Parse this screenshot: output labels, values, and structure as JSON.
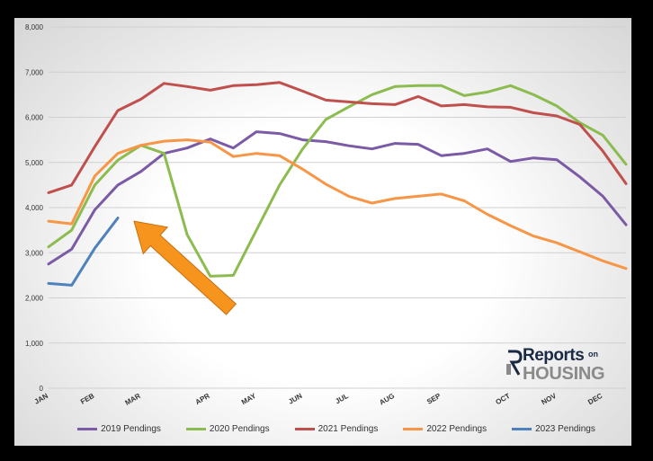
{
  "chart_data": {
    "type": "line",
    "title": "",
    "xlabel": "",
    "ylabel": "",
    "ylim": [
      0,
      8000
    ],
    "yticks": [
      0,
      1000,
      2000,
      3000,
      4000,
      5000,
      6000,
      7000,
      8000
    ],
    "ytick_labels": [
      "0",
      "1,000",
      "2,000",
      "3,000",
      "4,000",
      "5,000",
      "6,000",
      "7,000",
      "8,000"
    ],
    "x_month_labels": [
      "JAN",
      "FEB",
      "MAR",
      "APR",
      "MAY",
      "JUN",
      "JUL",
      "AUG",
      "SEP",
      "OCT",
      "NOV",
      "DEC"
    ],
    "x_month_positions": [
      0,
      2,
      4,
      7,
      9,
      11,
      13,
      15,
      17,
      20,
      22,
      24
    ],
    "grid": "horizontal",
    "legend_position": "bottom",
    "series": [
      {
        "name": "2019 Pendings",
        "color": "#7b5aa6",
        "values": [
          2750,
          3080,
          3950,
          4500,
          4800,
          5200,
          5320,
          5520,
          5320,
          5680,
          5640,
          5500,
          5460,
          5370,
          5300,
          5420,
          5400,
          5150,
          5200,
          5300,
          5020,
          5100,
          5060,
          4680,
          4250,
          3620
        ]
      },
      {
        "name": "2020 Pendings",
        "color": "#8cbc4f",
        "values": [
          3130,
          3500,
          4500,
          5050,
          5380,
          5200,
          3400,
          2480,
          2500,
          3500,
          4500,
          5300,
          5950,
          6230,
          6500,
          6680,
          6700,
          6700,
          6480,
          6560,
          6700,
          6500,
          6250,
          5880,
          5600,
          4960
        ]
      },
      {
        "name": "2021 Pendings",
        "color": "#c0504d",
        "values": [
          4330,
          4500,
          5350,
          6150,
          6400,
          6750,
          6680,
          6600,
          6700,
          6720,
          6770,
          6580,
          6380,
          6340,
          6300,
          6280,
          6460,
          6250,
          6280,
          6230,
          6220,
          6100,
          6030,
          5840,
          5250,
          4530
        ]
      },
      {
        "name": "2022 Pendings",
        "color": "#f79646",
        "values": [
          3700,
          3640,
          4700,
          5200,
          5380,
          5470,
          5500,
          5450,
          5130,
          5200,
          5150,
          4850,
          4520,
          4250,
          4100,
          4200,
          4250,
          4300,
          4150,
          3850,
          3600,
          3370,
          3220,
          3020,
          2820,
          2650
        ]
      },
      {
        "name": "2023 Pendings",
        "color": "#4f81bd",
        "values": [
          2320,
          2280,
          3100,
          3770
        ]
      }
    ],
    "annotation": {
      "type": "arrow",
      "color": "#f7941d",
      "points_to": {
        "x": 3.7,
        "y": 3700
      }
    }
  },
  "logo": {
    "top": "Reports",
    "on": "on",
    "bottom": "HOUSING"
  },
  "colors": {
    "grid": "#d0d0d0",
    "axis_text": "#333333"
  }
}
